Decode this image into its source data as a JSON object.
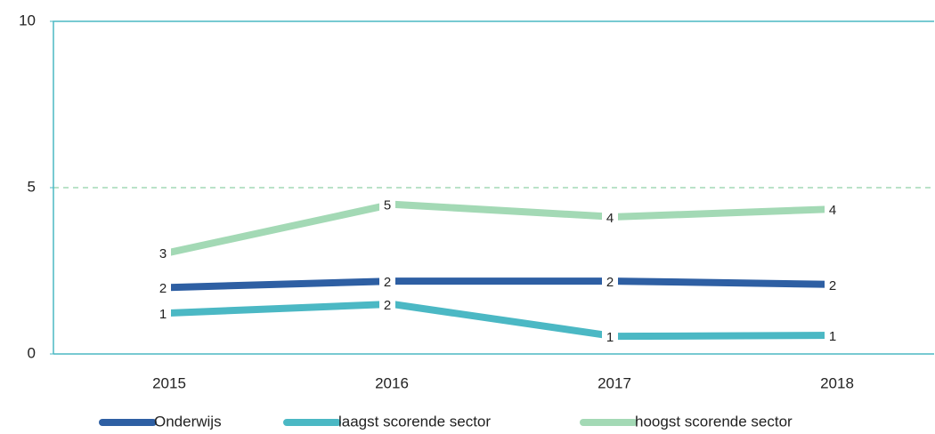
{
  "chart_data": {
    "type": "line",
    "categories": [
      "2015",
      "2016",
      "2017",
      "2018"
    ],
    "series": [
      {
        "name": "Onderwijs",
        "color": "#2e5fa3",
        "values": [
          2.0,
          2.19,
          2.19,
          2.09
        ],
        "value_labels": [
          "2",
          "2",
          "2",
          "2"
        ]
      },
      {
        "name": "laagst scorende sector",
        "color": "#4bb8c4",
        "values": [
          1.23,
          1.5,
          0.53,
          0.56
        ],
        "value_labels": [
          "1",
          "2",
          "1",
          "1"
        ]
      },
      {
        "name": "hoogst scorende sector",
        "color": "#a3d9b5",
        "values": [
          3.05,
          4.5,
          4.12,
          4.36
        ],
        "value_labels": [
          "3",
          "5",
          "4",
          "4"
        ]
      }
    ],
    "ylim": [
      0,
      10
    ],
    "yticks": [
      0,
      5,
      10
    ],
    "reference_line": {
      "value": 5,
      "color": "#a3d9b5"
    },
    "axis_color": "#4bb8c4",
    "legend": "bottom"
  }
}
